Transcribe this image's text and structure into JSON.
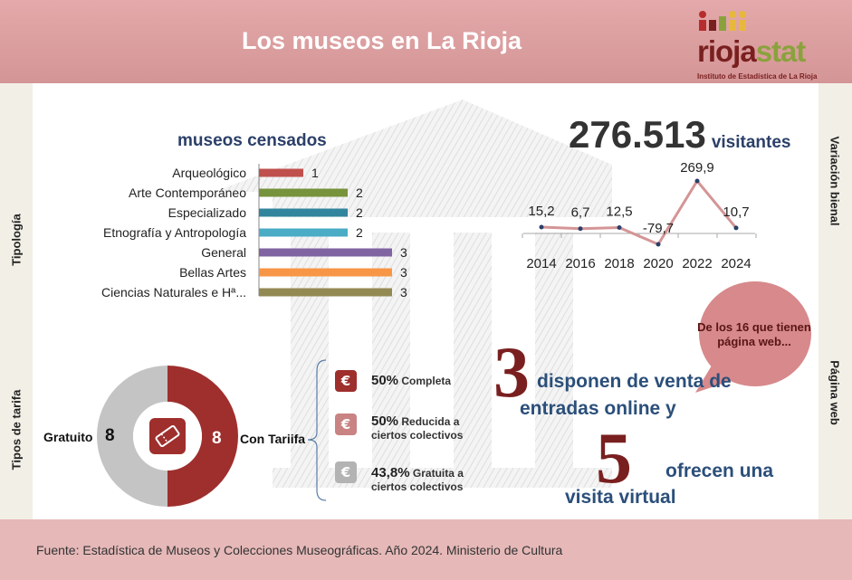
{
  "header": {
    "title": "Los museos en La Rioja",
    "logo_text_a": "rioja",
    "logo_text_b": "stat",
    "logo_subtitle": "Instituto de Estadística de La Rioja"
  },
  "side_labels": {
    "tipologia": "Tipología",
    "tipos_tarifa": "Tipos de tarifa",
    "variacion_bienal": "Variación bienal",
    "pagina_web": "Página web"
  },
  "museos_censados": {
    "title": "museos censados"
  },
  "visitors": {
    "number": "276.513",
    "word": "visitantes"
  },
  "tarifas": {
    "gratuito_label": "Gratuito",
    "gratuito_value": 8,
    "con_tarifa_label": "Con Tariifa",
    "con_tarifa_value": 8,
    "items": [
      {
        "pct": "50%",
        "label": "Completa",
        "color": "#9e2f2d"
      },
      {
        "pct": "50%",
        "label": "Reducida a ciertos colectivos",
        "color": "#c98383"
      },
      {
        "pct": "43,8%",
        "label": "Gratuita a ciertos colectivos",
        "color": "#b3b3b3"
      }
    ],
    "icon": "euro-icon"
  },
  "web": {
    "bubble": "De los 16 que tienen página web...",
    "num_online": "3",
    "text_online_1": "disponen de venta de",
    "text_online_2": "entradas online y",
    "num_virtual": "5",
    "text_virtual_1": "ofrecen una",
    "text_virtual_2": "visita virtual"
  },
  "footer": {
    "source": "Fuente: Estadística de Museos y Colecciones Museográficas. Año 2024. Ministerio de Cultura"
  },
  "colors": {
    "header": "#dca0a1",
    "footer": "#e6b8b8",
    "dark_red": "#9e2f2d",
    "navy": "#2b3f68",
    "blue_text": "#2b4f7a",
    "grey": "#c4c4c4"
  },
  "chart_data": [
    {
      "type": "bar",
      "orientation": "horizontal",
      "title": "museos censados",
      "categories": [
        "Arqueológico",
        "Arte Contemporáneo",
        "Especializado",
        "Etnografía y Antropología",
        "General",
        "Bellas Artes",
        "Ciencias Naturales e Hª..."
      ],
      "values": [
        1,
        2,
        2,
        2,
        3,
        3,
        3
      ],
      "colors": [
        "#c0504d",
        "#77933c",
        "#31859c",
        "#4bacc6",
        "#8064a2",
        "#f79646",
        "#938953"
      ]
    },
    {
      "type": "line",
      "title": "Variación bienal",
      "x": [
        "2014",
        "2016",
        "2018",
        "2020",
        "2022",
        "2024"
      ],
      "values": [
        15.2,
        6.7,
        12.5,
        -79.7,
        269.9,
        10.7
      ],
      "labels": [
        "15,2",
        "6,7",
        "12,5",
        "-79,7",
        "269,9",
        "10,7"
      ]
    },
    {
      "type": "pie",
      "title": "Tipos de tarifa",
      "categories": [
        "Con Tariifa",
        "Gratuito"
      ],
      "values": [
        8,
        8
      ],
      "colors": [
        "#9e2f2d",
        "#c4c4c4"
      ]
    }
  ]
}
